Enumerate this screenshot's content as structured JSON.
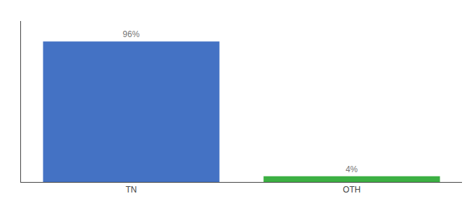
{
  "chart_data": {
    "type": "bar",
    "categories": [
      "TN",
      "OTH"
    ],
    "values": [
      96,
      4
    ],
    "value_labels": [
      "96%",
      "4%"
    ],
    "colors": [
      "#4472c4",
      "#3cb043"
    ],
    "ylim": [
      0,
      110
    ],
    "grid": false,
    "tick_labels": "x",
    "data_labels": true
  }
}
